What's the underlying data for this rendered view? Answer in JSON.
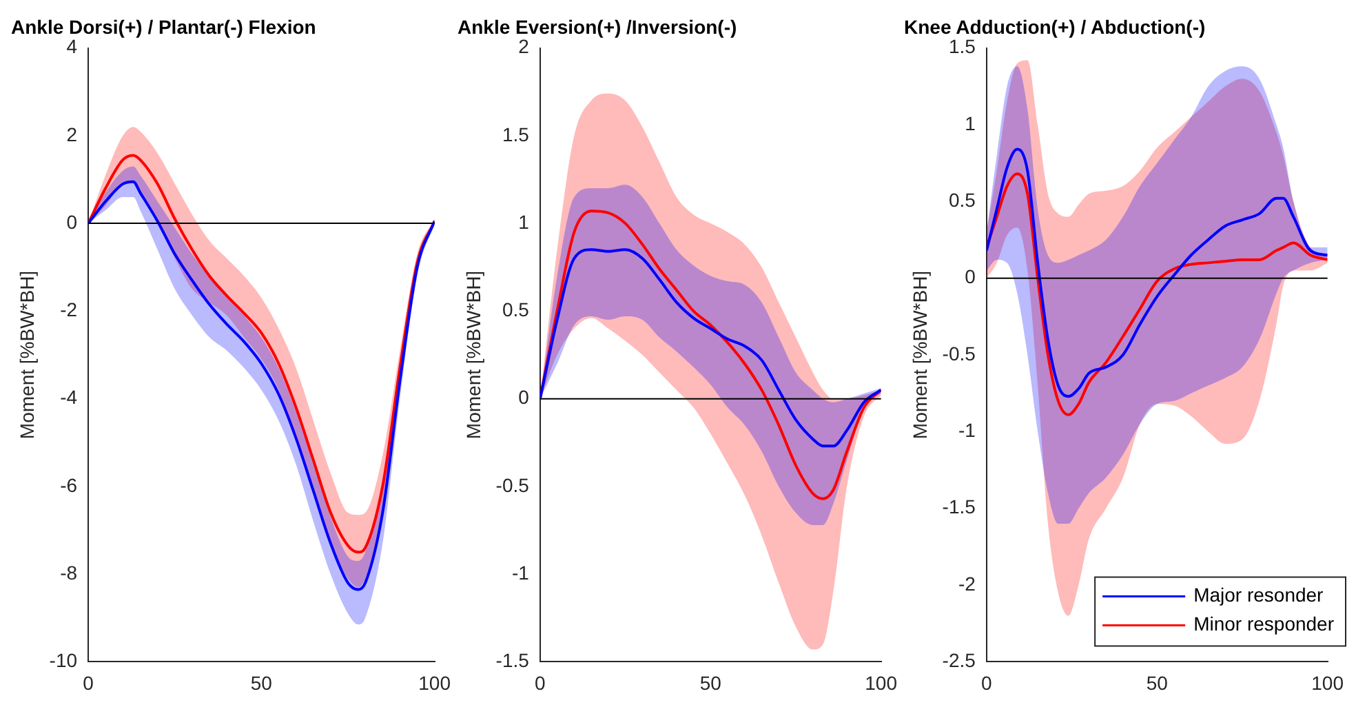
{
  "chart_data": [
    {
      "type": "line",
      "title": "Ankle Dorsi(+) / Plantar(-) Flexion",
      "ylabel": "Moment [%BW*BH]",
      "x": [
        0,
        5,
        10,
        13,
        15,
        20,
        25,
        30,
        35,
        40,
        45,
        50,
        55,
        60,
        65,
        70,
        75,
        78,
        80,
        85,
        90,
        95,
        100
      ],
      "xlim": [
        0,
        100
      ],
      "xticks": [
        0,
        50,
        100
      ],
      "ylim": [
        -10,
        4
      ],
      "yticks": [
        -10,
        -8,
        -6,
        -4,
        -2,
        0,
        2,
        4
      ],
      "ref_lines": [
        {
          "axis": "y",
          "value": 0,
          "color": "#000000"
        }
      ],
      "series": [
        {
          "color": "#0000ff",
          "values": [
            0,
            0.5,
            0.9,
            0.95,
            0.7,
            0.05,
            -0.7,
            -1.3,
            -1.85,
            -2.3,
            -2.7,
            -3.2,
            -3.9,
            -4.9,
            -6.1,
            -7.3,
            -8.2,
            -8.35,
            -8.2,
            -6.6,
            -3.6,
            -1.0,
            0.05
          ],
          "lower": [
            0,
            0.3,
            0.6,
            0.6,
            0.3,
            -0.6,
            -1.5,
            -2.1,
            -2.6,
            -2.9,
            -3.3,
            -3.8,
            -4.5,
            -5.5,
            -6.8,
            -8.0,
            -8.9,
            -9.15,
            -9.0,
            -7.3,
            -4.0,
            -1.2,
            0
          ],
          "upper": [
            0,
            0.7,
            1.2,
            1.3,
            1.1,
            0.5,
            -0.1,
            -0.7,
            -1.2,
            -1.6,
            -2.1,
            -2.6,
            -3.3,
            -4.3,
            -5.5,
            -6.7,
            -7.6,
            -7.7,
            -7.5,
            -5.9,
            -3.1,
            -0.8,
            0.1
          ]
        },
        {
          "color": "#ff0000",
          "values": [
            0,
            0.8,
            1.45,
            1.55,
            1.45,
            0.9,
            0.1,
            -0.6,
            -1.2,
            -1.65,
            -2.05,
            -2.5,
            -3.2,
            -4.2,
            -5.4,
            -6.6,
            -7.35,
            -7.5,
            -7.4,
            -6.0,
            -3.3,
            -0.9,
            0.05
          ],
          "lower": [
            0,
            0.4,
            0.9,
            0.95,
            0.7,
            0,
            -0.8,
            -1.5,
            -1.8,
            -2.1,
            -2.6,
            -3.1,
            -3.8,
            -4.9,
            -6.1,
            -7.3,
            -8.1,
            -8.3,
            -8.1,
            -6.6,
            -3.6,
            -1.0,
            0
          ],
          "upper": [
            0,
            1.1,
            2.0,
            2.2,
            2.1,
            1.6,
            0.9,
            0.2,
            -0.4,
            -0.8,
            -1.2,
            -1.7,
            -2.4,
            -3.3,
            -4.5,
            -5.7,
            -6.6,
            -6.65,
            -6.6,
            -5.3,
            -2.9,
            -0.7,
            0.1
          ]
        }
      ]
    },
    {
      "type": "line",
      "title": "Ankle Eversion(+) /Inversion(-)",
      "ylabel": "Moment [%BW*BH]",
      "x": [
        0,
        5,
        10,
        15,
        20,
        25,
        30,
        35,
        40,
        45,
        50,
        55,
        60,
        65,
        70,
        75,
        80,
        83,
        86,
        90,
        95,
        100
      ],
      "xlim": [
        0,
        100
      ],
      "xticks": [
        0,
        50,
        100
      ],
      "ylim": [
        -1.5,
        2
      ],
      "yticks": [
        -1.5,
        -1,
        -0.5,
        0,
        0.5,
        1,
        1.5,
        2
      ],
      "ref_lines": [
        {
          "axis": "y",
          "value": 0,
          "color": "#000000"
        }
      ],
      "series": [
        {
          "color": "#0000ff",
          "values": [
            0,
            0.45,
            0.8,
            0.85,
            0.84,
            0.85,
            0.8,
            0.68,
            0.55,
            0.46,
            0.4,
            0.34,
            0.3,
            0.22,
            0.05,
            -0.12,
            -0.23,
            -0.27,
            -0.27,
            -0.18,
            -0.02,
            0.05
          ],
          "lower": [
            0,
            0.2,
            0.42,
            0.47,
            0.45,
            0.47,
            0.45,
            0.35,
            0.27,
            0.18,
            0.08,
            -0.05,
            -0.15,
            -0.3,
            -0.5,
            -0.65,
            -0.72,
            -0.72,
            -0.6,
            -0.35,
            -0.05,
            0.03
          ],
          "upper": [
            0,
            0.7,
            1.15,
            1.2,
            1.2,
            1.22,
            1.15,
            1.0,
            0.85,
            0.76,
            0.7,
            0.67,
            0.65,
            0.55,
            0.35,
            0.15,
            0.05,
            0.0,
            -0.02,
            0.0,
            0.03,
            0.06
          ]
        },
        {
          "color": "#ff0000",
          "values": [
            0,
            0.5,
            0.95,
            1.07,
            1.06,
            1.0,
            0.88,
            0.74,
            0.62,
            0.5,
            0.42,
            0.32,
            0.2,
            0.05,
            -0.15,
            -0.38,
            -0.54,
            -0.57,
            -0.52,
            -0.3,
            -0.05,
            0.05
          ],
          "lower": [
            0,
            0.25,
            0.4,
            0.46,
            0.4,
            0.33,
            0.25,
            0.15,
            0.05,
            -0.05,
            -0.2,
            -0.37,
            -0.55,
            -0.78,
            -1.05,
            -1.3,
            -1.43,
            -1.4,
            -1.1,
            -0.5,
            -0.1,
            0.02
          ],
          "upper": [
            0,
            0.85,
            1.5,
            1.7,
            1.74,
            1.7,
            1.55,
            1.35,
            1.15,
            1.05,
            1.0,
            0.95,
            0.88,
            0.75,
            0.55,
            0.35,
            0.15,
            0.05,
            0.0,
            0.0,
            0.02,
            0.05
          ]
        }
      ]
    },
    {
      "type": "line",
      "title": "Knee Adduction(+) / Abduction(-)",
      "ylabel": "Moment [%BW*BH]",
      "x": [
        0,
        3,
        6,
        9,
        12,
        15,
        18,
        21,
        24,
        27,
        30,
        35,
        40,
        45,
        50,
        55,
        60,
        65,
        70,
        75,
        80,
        85,
        87,
        90,
        95,
        100
      ],
      "xlim": [
        0,
        100
      ],
      "xticks": [
        0,
        50,
        100
      ],
      "ylim": [
        -2.5,
        1.5
      ],
      "yticks": [
        -2.5,
        -2,
        -1.5,
        -1,
        -0.5,
        0,
        0.5,
        1,
        1.5
      ],
      "ref_lines": [
        {
          "axis": "y",
          "value": 0,
          "color": "#000000"
        }
      ],
      "legend": "bottom right",
      "series": [
        {
          "name": "Major resonder",
          "color": "#0000ff",
          "values": [
            0.18,
            0.45,
            0.72,
            0.84,
            0.7,
            0.1,
            -0.4,
            -0.7,
            -0.77,
            -0.72,
            -0.62,
            -0.58,
            -0.5,
            -0.3,
            -0.12,
            0.02,
            0.15,
            0.25,
            0.34,
            0.38,
            0.42,
            0.52,
            0.52,
            0.4,
            0.18,
            0.15
          ],
          "lower": [
            0.05,
            0.12,
            0.1,
            -0.1,
            -0.5,
            -1.0,
            -1.4,
            -1.6,
            -1.6,
            -1.5,
            -1.4,
            -1.3,
            -1.15,
            -0.95,
            -0.82,
            -0.8,
            -0.75,
            -0.7,
            -0.65,
            -0.58,
            -0.4,
            -0.1,
            0.0,
            0.05,
            0.1,
            0.12
          ],
          "upper": [
            0.3,
            0.8,
            1.25,
            1.38,
            1.1,
            0.45,
            0.15,
            0.1,
            0.12,
            0.15,
            0.18,
            0.25,
            0.4,
            0.6,
            0.75,
            0.9,
            1.05,
            1.25,
            1.35,
            1.38,
            1.3,
            1.0,
            0.85,
            0.5,
            0.2,
            0.2
          ]
        },
        {
          "name": "Minor responder",
          "color": "#ff0000",
          "values": [
            0.2,
            0.4,
            0.6,
            0.68,
            0.55,
            0.0,
            -0.5,
            -0.8,
            -0.89,
            -0.82,
            -0.68,
            -0.55,
            -0.38,
            -0.2,
            -0.02,
            0.06,
            0.09,
            0.1,
            0.11,
            0.12,
            0.12,
            0.18,
            0.2,
            0.23,
            0.15,
            0.12
          ],
          "lower": [
            0.0,
            0.1,
            0.28,
            0.33,
            0.05,
            -0.7,
            -1.6,
            -2.05,
            -2.2,
            -2.0,
            -1.7,
            -1.5,
            -1.3,
            -0.95,
            -0.82,
            -0.83,
            -0.9,
            -1.0,
            -1.08,
            -1.05,
            -0.8,
            -0.3,
            -0.05,
            0.05,
            0.05,
            0.1
          ],
          "upper": [
            0.3,
            0.7,
            1.15,
            1.4,
            1.42,
            1.0,
            0.55,
            0.42,
            0.4,
            0.48,
            0.55,
            0.57,
            0.6,
            0.7,
            0.85,
            0.95,
            1.05,
            1.15,
            1.25,
            1.3,
            1.22,
            0.95,
            0.8,
            0.5,
            0.2,
            0.15
          ]
        }
      ]
    }
  ]
}
